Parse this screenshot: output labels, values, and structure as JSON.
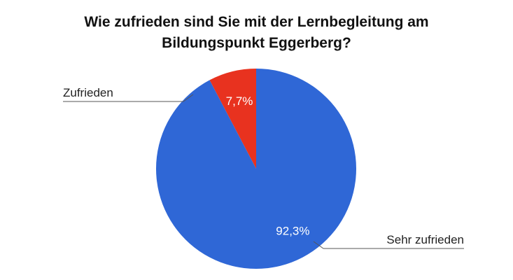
{
  "chart_data": {
    "type": "pie",
    "title": "Wie zufrieden sind Sie mit der Lernbegleitung am Bildungspunkt Eggerberg?",
    "title_lines": [
      "Wie zufrieden sind Sie mit der Lernbegleitung am",
      "Bildungspunkt Eggerberg?"
    ],
    "slices": [
      {
        "label": "Zufrieden",
        "value": 7.7,
        "display": "7,7%",
        "color": "#e8321f"
      },
      {
        "label": "Sehr zufrieden",
        "value": 92.3,
        "display": "92,3%",
        "color": "#2f67d6"
      }
    ],
    "start_angle_deg": 0,
    "direction": "counterclockwise",
    "legend": "none"
  }
}
